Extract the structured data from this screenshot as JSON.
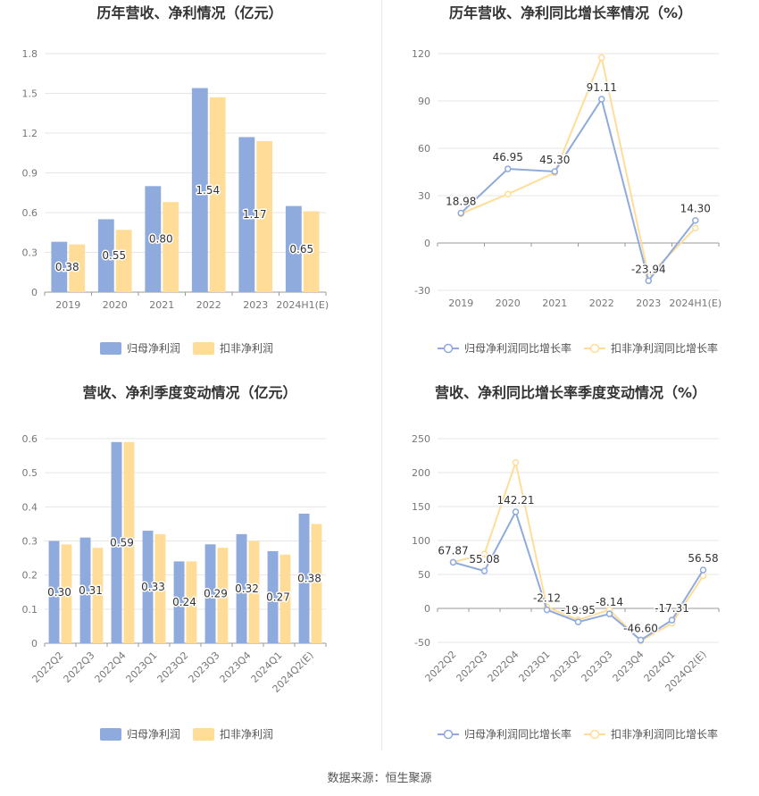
{
  "colors": {
    "primary": "#8faadc",
    "secondary": "#ffdd99",
    "grid": "#e6e6e6",
    "axis_text": "#777777",
    "title": "#333333"
  },
  "source_text": "数据来源：恒生聚源",
  "chart_data": [
    {
      "type": "bar",
      "title": "历年营收、净利情况（亿元）",
      "categories": [
        "2019",
        "2020",
        "2021",
        "2022",
        "2023",
        "2024H1(E)"
      ],
      "yticks": [
        "0",
        "0.3",
        "0.6",
        "0.9",
        "1.2",
        "1.5",
        "1.8"
      ],
      "ylim": [
        0,
        1.8
      ],
      "series": [
        {
          "name": "归母净利润",
          "values": [
            0.38,
            0.55,
            0.8,
            1.54,
            1.17,
            0.65
          ],
          "labels": [
            "0.38",
            "0.55",
            "0.80",
            "1.54",
            "1.17",
            "0.65"
          ]
        },
        {
          "name": "扣非净利润",
          "values": [
            0.36,
            0.47,
            0.68,
            1.47,
            1.14,
            0.61
          ]
        }
      ],
      "legend": "bottom"
    },
    {
      "type": "line",
      "title": "历年营收、净利同比增长率情况（%）",
      "categories": [
        "2019",
        "2020",
        "2021",
        "2022",
        "2023",
        "2024H1(E)"
      ],
      "yticks": [
        "-30",
        "0",
        "30",
        "60",
        "90",
        "120"
      ],
      "ylim": [
        -30,
        120
      ],
      "series": [
        {
          "name": "归母净利润同比增长率",
          "values": [
            18.98,
            46.95,
            45.3,
            91.11,
            -23.94,
            14.3
          ],
          "labels": [
            "18.98",
            "46.95",
            "45.30",
            "91.11",
            "-23.94",
            "14.30"
          ]
        },
        {
          "name": "扣非净利润同比增长率",
          "values": [
            18.5,
            31.0,
            44.5,
            117.5,
            -21.0,
            9.5
          ]
        }
      ],
      "legend": "bottom"
    },
    {
      "type": "bar",
      "title": "营收、净利季度变动情况（亿元）",
      "categories": [
        "2022Q2",
        "2022Q3",
        "2022Q4",
        "2023Q1",
        "2023Q2",
        "2023Q3",
        "2023Q4",
        "2024Q1",
        "2024Q2(E)"
      ],
      "yticks": [
        "0",
        "0.1",
        "0.2",
        "0.3",
        "0.4",
        "0.5",
        "0.6"
      ],
      "ylim": [
        0,
        0.6
      ],
      "series": [
        {
          "name": "归母净利润",
          "values": [
            0.3,
            0.31,
            0.59,
            0.33,
            0.24,
            0.29,
            0.32,
            0.27,
            0.38
          ],
          "labels": [
            "0.30",
            "0.31",
            "0.59",
            "0.33",
            "0.24",
            "0.29",
            "0.32",
            "0.27",
            "0.38"
          ]
        },
        {
          "name": "扣非净利润",
          "values": [
            0.29,
            0.28,
            0.59,
            0.32,
            0.24,
            0.28,
            0.3,
            0.26,
            0.35
          ]
        }
      ],
      "legend": "bottom"
    },
    {
      "type": "line",
      "title": "营收、净利同比增长率季度变动情况（%）",
      "categories": [
        "2022Q2",
        "2022Q3",
        "2022Q4",
        "2023Q1",
        "2023Q2",
        "2023Q3",
        "2023Q4",
        "2024Q1",
        "2024Q2(E)"
      ],
      "yticks": [
        "-50",
        "0",
        "50",
        "100",
        "150",
        "200",
        "250"
      ],
      "ylim": [
        -50,
        250
      ],
      "series": [
        {
          "name": "归母净利润同比增长率",
          "values": [
            67.87,
            55.08,
            142.21,
            -2.12,
            -19.95,
            -8.14,
            -46.6,
            -17.31,
            56.58
          ],
          "labels": [
            "67.87",
            "55.08",
            "142.21",
            "-2.12",
            "-19.95",
            "-8.14",
            "-46.60",
            "-17.31",
            "56.58"
          ]
        },
        {
          "name": "扣非净利润同比增长率",
          "values": [
            68.0,
            80.0,
            215.0,
            2.0,
            -17.0,
            -2.0,
            -48.0,
            -22.0,
            48.0
          ]
        }
      ],
      "legend": "bottom"
    }
  ]
}
